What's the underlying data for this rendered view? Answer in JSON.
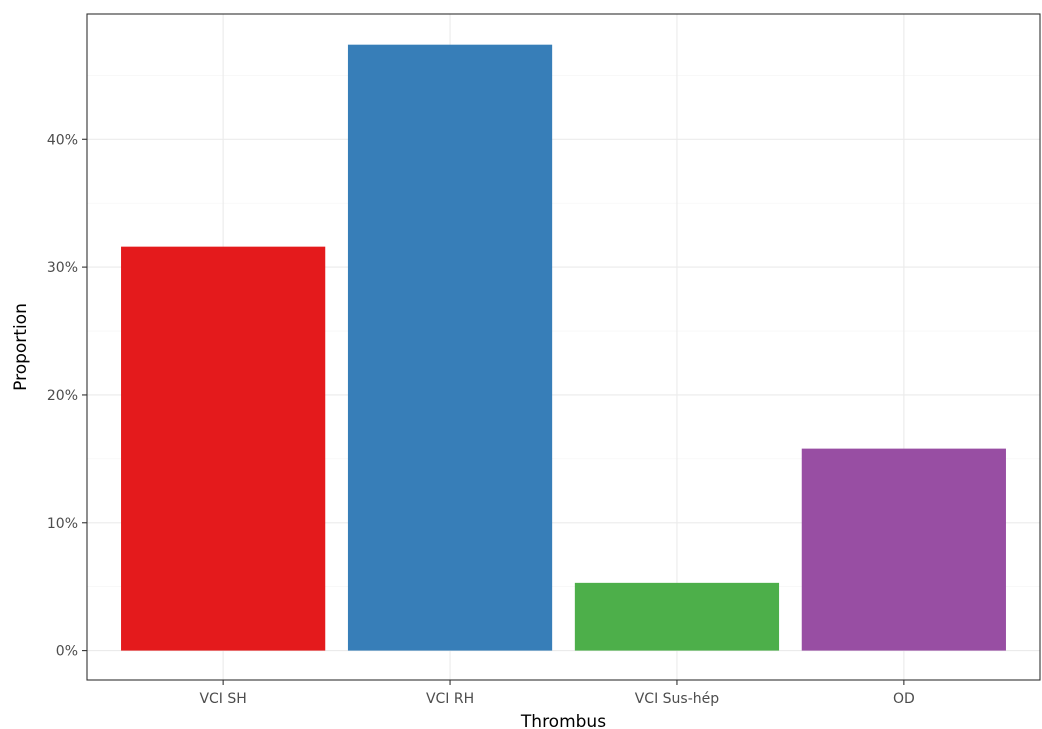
{
  "chart_data": {
    "type": "bar",
    "title": "",
    "xlabel": "Thrombus",
    "ylabel": "Proportion",
    "categories": [
      "VCI SH",
      "VCI RH",
      "VCI Sus-hép",
      "OD"
    ],
    "values": [
      0.316,
      0.474,
      0.053,
      0.158
    ],
    "colors": [
      "#E41A1C",
      "#377EB8",
      "#4DAF4A",
      "#984EA3"
    ],
    "ylim": [
      -0.023,
      0.498
    ],
    "yticks": [
      0,
      0.1,
      0.2,
      0.3,
      0.4
    ],
    "ytick_labels": [
      "0%",
      "10%",
      "20%",
      "30%",
      "40%"
    ],
    "grid": true,
    "legend": "none"
  }
}
